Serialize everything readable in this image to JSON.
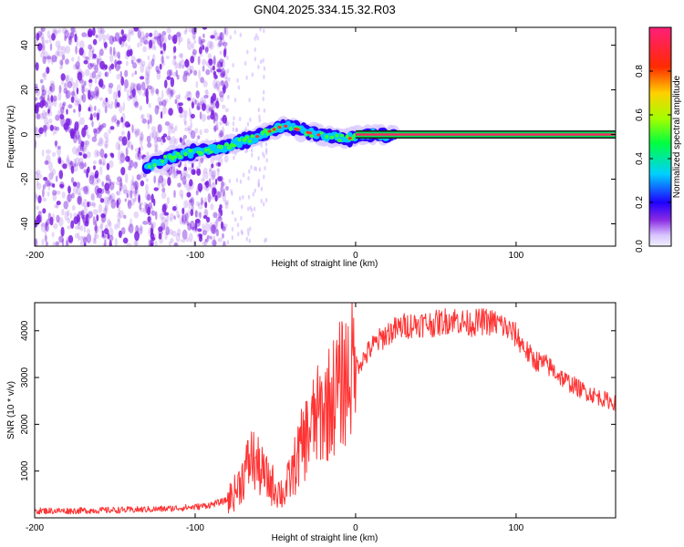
{
  "title": "GN04.2025.334.15.32.R03",
  "chart_data": [
    {
      "id": "spectrogram",
      "type": "heatmap",
      "xlabel": "Height of straight line (km)",
      "ylabel": "Frequency (Hz)",
      "xlim": [
        -200,
        162
      ],
      "ylim": [
        -50,
        48
      ],
      "xticks": [
        -200,
        -100,
        0,
        100
      ],
      "yticks": [
        -40,
        -20,
        0,
        20,
        40
      ],
      "colorbar": {
        "label": "Normalized spectral amplitude",
        "range": [
          0,
          1
        ],
        "ticks": [
          "0.0",
          "0.2",
          "0.4",
          "0.6",
          "0.8"
        ],
        "tick_values": [
          0.0,
          0.2,
          0.4,
          0.6,
          0.8
        ]
      },
      "noise_region_x": [
        -200,
        -80
      ],
      "noise_color": "#7a1fe0",
      "signal_track": {
        "x": [
          -130,
          -110,
          -90,
          -75,
          -65,
          -55,
          -45,
          -35,
          -25,
          -15,
          -5,
          0,
          10,
          20,
          162
        ],
        "frequency": [
          -14,
          -9,
          -7,
          -4,
          -2,
          1,
          4,
          2,
          0,
          -1,
          -2,
          -1,
          0,
          0,
          0
        ]
      },
      "steady_line": {
        "x_start": 0,
        "x_end": 162,
        "frequency": 0,
        "color": "#ff1f5a"
      }
    },
    {
      "id": "snr",
      "type": "line",
      "xlabel": "Height of straight line (km)",
      "ylabel": "SNR (10 * v/v)",
      "xlim": [
        -200,
        162
      ],
      "ylim": [
        0,
        4600
      ],
      "xticks": [
        -200,
        -100,
        0,
        100
      ],
      "yticks": [
        1000,
        2000,
        3000,
        4000
      ],
      "color": "#ff3333",
      "series": [
        {
          "name": "SNR",
          "x": [
            -200,
            -180,
            -160,
            -140,
            -120,
            -100,
            -90,
            -80,
            -75,
            -70,
            -65,
            -60,
            -55,
            -50,
            -45,
            -40,
            -35,
            -30,
            -25,
            -20,
            -15,
            -10,
            -5,
            0,
            5,
            10,
            20,
            30,
            40,
            50,
            60,
            70,
            80,
            90,
            100,
            105,
            110,
            120,
            130,
            140,
            150,
            162
          ],
          "values": [
            150,
            150,
            160,
            170,
            190,
            230,
            280,
            380,
            550,
            900,
            1300,
            1050,
            800,
            650,
            500,
            900,
            1400,
            1800,
            2100,
            2300,
            2550,
            2800,
            3050,
            3250,
            3400,
            3650,
            3950,
            4100,
            4150,
            4150,
            4250,
            4150,
            4200,
            4150,
            3900,
            3650,
            3400,
            3250,
            2950,
            2750,
            2600,
            2450
          ]
        }
      ]
    }
  ]
}
